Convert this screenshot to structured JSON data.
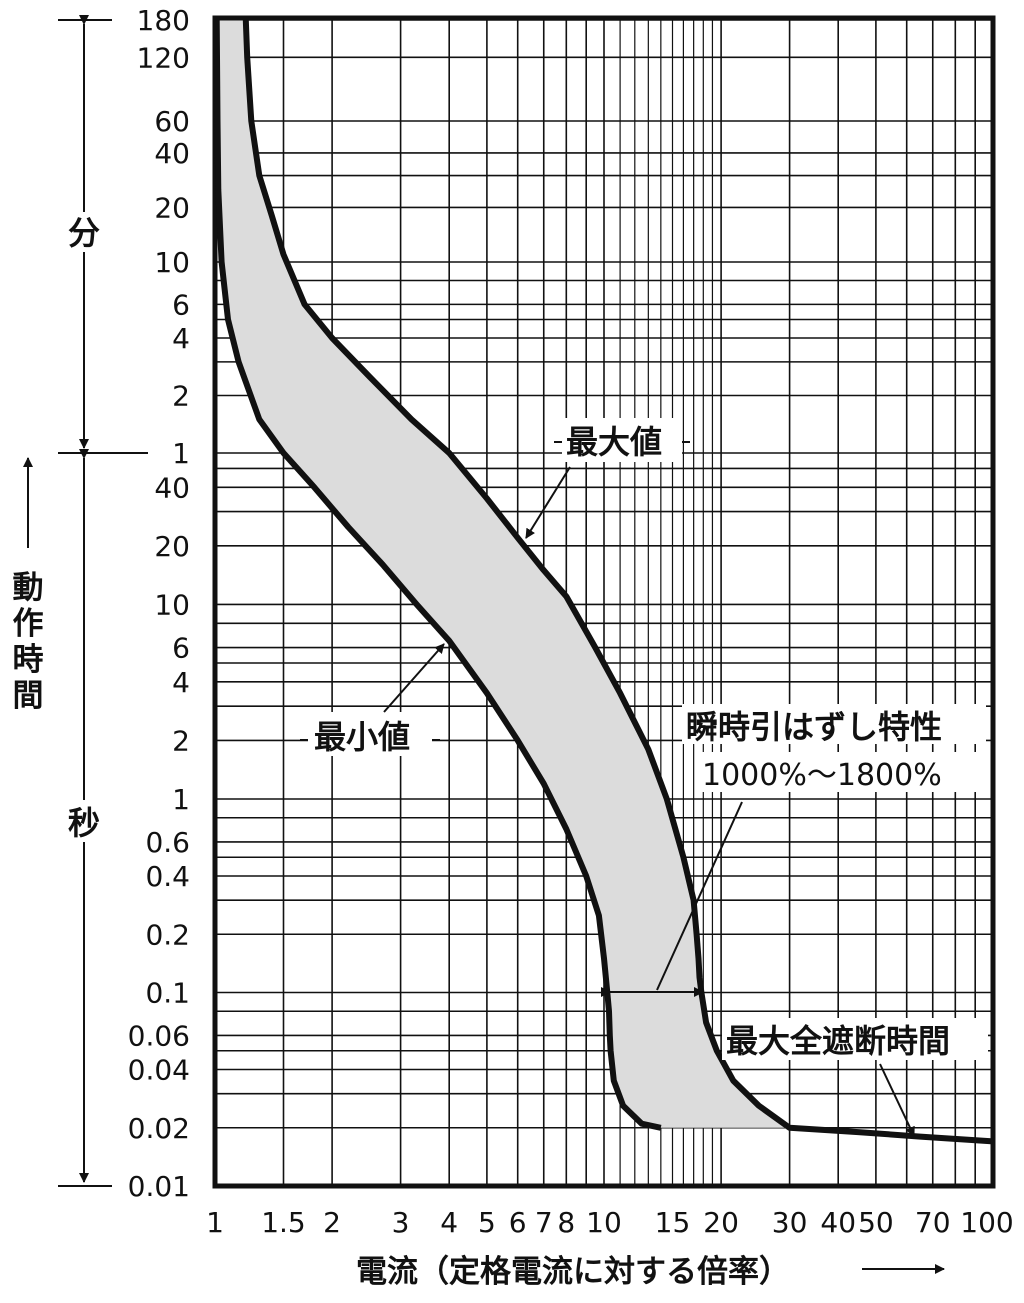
{
  "chart_data": {
    "type": "area",
    "xlabel": "電流（定格電流に対する倍率）",
    "ylabel": "動作時間",
    "x_scale": "log",
    "y_scale": "log",
    "xlim": [
      1,
      100
    ],
    "x_ticks": [
      "1",
      "1.5",
      "2",
      "3",
      "4",
      "5",
      "6",
      "7",
      "8",
      "10",
      "15",
      "20",
      "30",
      "40",
      "50",
      "70",
      "100"
    ],
    "y_ticks_minutes": [
      "180",
      "120",
      "60",
      "40",
      "20",
      "10",
      "6",
      "4",
      "2",
      "1"
    ],
    "y_ticks_seconds": [
      "40",
      "20",
      "10",
      "6",
      "4",
      "2",
      "1",
      "0.6",
      "0.4",
      "0.2",
      "0.1",
      "0.06",
      "0.04",
      "0.02",
      "0.01"
    ],
    "y_units": {
      "minutes": "分",
      "seconds": "秒"
    },
    "grid": true,
    "series": [
      {
        "name": "最大値",
        "x": [
          1.2,
          1.21,
          1.24,
          1.3,
          1.4,
          1.5,
          1.7,
          2.0,
          2.5,
          3.2,
          4.0,
          5.0,
          6.0,
          7.0,
          8.0,
          9.5,
          11.0,
          13.0,
          14.5,
          16.0,
          17.0,
          17.3,
          17.5,
          17.6,
          17.8,
          18.3,
          19.5,
          21.5,
          25.0,
          30.0,
          45.0,
          65.0,
          100.0
        ],
        "y": [
          10800,
          7200,
          3600,
          1800,
          1080,
          660,
          360,
          240,
          150,
          90,
          60,
          35,
          22,
          15,
          11,
          6,
          3.5,
          1.8,
          1.0,
          0.5,
          0.3,
          0.2,
          0.15,
          0.12,
          0.1,
          0.07,
          0.05,
          0.035,
          0.026,
          0.02,
          0.019,
          0.018,
          0.017
        ]
      },
      {
        "name": "最小値",
        "x": [
          1.01,
          1.015,
          1.02,
          1.04,
          1.08,
          1.15,
          1.3,
          1.5,
          1.8,
          2.2,
          2.7,
          3.3,
          4.0,
          5.0,
          6.0,
          7.0,
          8.0,
          9.0,
          9.7,
          10.0,
          10.2,
          10.3,
          10.35,
          10.4,
          10.6,
          11.2,
          12.5,
          14.0
        ],
        "y": [
          10800,
          3600,
          1500,
          600,
          300,
          180,
          90,
          60,
          40,
          25,
          16,
          10,
          6.5,
          3.5,
          2.0,
          1.2,
          0.7,
          0.4,
          0.25,
          0.15,
          0.1,
          0.08,
          0.06,
          0.05,
          0.035,
          0.026,
          0.021,
          0.02
        ]
      }
    ],
    "annotations": {
      "max": "最大値",
      "min": "最小値",
      "instant": "瞬時引はずし特性",
      "instant_range": "1000%〜1800%",
      "interrupt": "最大全遮断時間"
    }
  }
}
